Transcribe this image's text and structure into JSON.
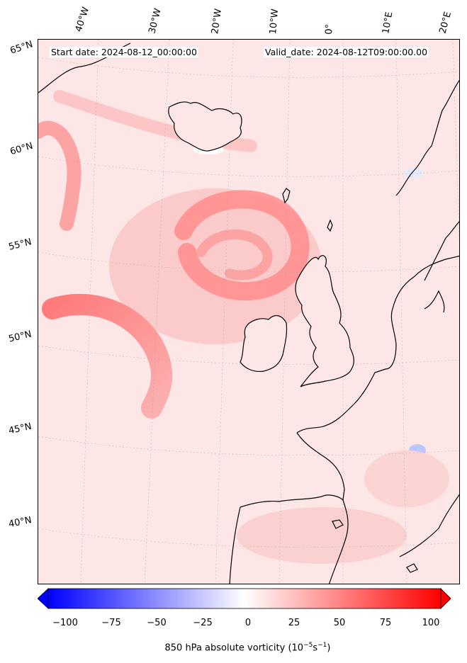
{
  "header": {
    "start_date": "Start date: 2024-08-12_00:00:00",
    "valid_date": "Valid_date: 2024-08-12T09:00:00.00"
  },
  "longitude_labels": [
    "40°W",
    "30°W",
    "20°W",
    "10°W",
    "0°",
    "10°E",
    "20°E"
  ],
  "latitude_labels": [
    "65°N",
    "60°N",
    "55°N",
    "50°N",
    "45°N",
    "40°N"
  ],
  "colorbar": {
    "ticks": [
      "−100",
      "−75",
      "−50",
      "−25",
      "0",
      "25",
      "50",
      "75",
      "100"
    ],
    "label_main": "850 hPa absolute vorticity (10",
    "label_exp1": "−5",
    "label_mid": "s",
    "label_exp2": "−1",
    "label_end": ")",
    "min_color": "#0000ff",
    "mid_color": "#ffffff",
    "max_color": "#ff0000"
  },
  "field": {
    "background_color": "#fde6e6",
    "strong_color": "#ff8080",
    "land_color": "#fde6e6",
    "coast_color": "#000000"
  }
}
